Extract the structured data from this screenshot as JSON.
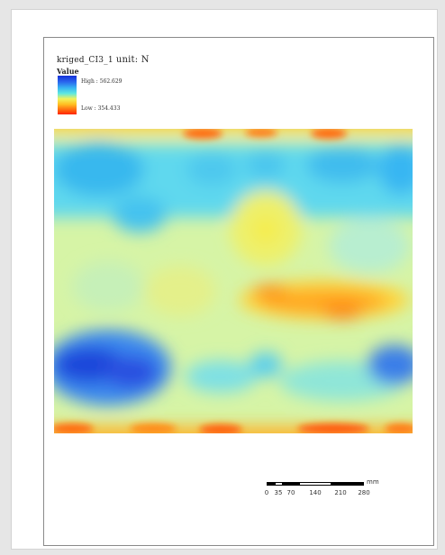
{
  "legend": {
    "title_name": "kriged_CI3_1",
    "title_unit": "unit: N",
    "value_label": "Value",
    "high_label": "High : 562.629",
    "low_label": "Low : 354.433",
    "ramp_colors": [
      "#1530d8",
      "#2a66ee",
      "#38b6f2",
      "#5fe8e0",
      "#f2f25a",
      "#ffbf22",
      "#ff6a10",
      "#ff2400"
    ]
  },
  "map": {
    "value_range": [
      354.433,
      562.629
    ],
    "background_color": "#d9f2c8"
  },
  "scalebar": {
    "ticks": [
      "0",
      "35",
      "70",
      "140",
      "210",
      "280"
    ],
    "unit_label": "mm"
  }
}
